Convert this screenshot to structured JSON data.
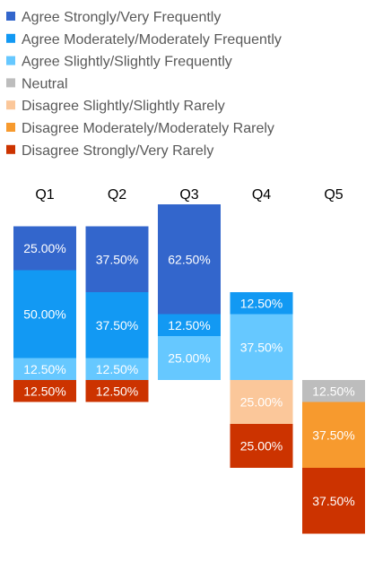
{
  "chart_data": {
    "type": "bar",
    "stacked": true,
    "diverging": true,
    "categories": [
      "Q1",
      "Q2",
      "Q3",
      "Q4",
      "Q5"
    ],
    "series": [
      {
        "name": "Agree Strongly/Very Frequently",
        "color": "#3366cc",
        "values": [
          25.0,
          37.5,
          62.5,
          0,
          0
        ],
        "labels": [
          "25.00%",
          "37.50%",
          "62.50%",
          "",
          ""
        ]
      },
      {
        "name": "Agree Moderately/Moderately Frequently",
        "color": "#1299f3",
        "values": [
          50.0,
          37.5,
          12.5,
          12.5,
          0
        ],
        "labels": [
          "50.00%",
          "37.50%",
          "12.50%",
          "12.50%",
          ""
        ]
      },
      {
        "name": "Agree Slightly/Slightly Frequently",
        "color": "#66c8ff",
        "values": [
          12.5,
          12.5,
          25.0,
          37.5,
          0
        ],
        "labels": [
          "12.50%",
          "12.50%",
          "25.00%",
          "37.50%",
          ""
        ]
      },
      {
        "name": "Neutral",
        "color": "#bdbdbd",
        "values": [
          0,
          0,
          0,
          0,
          12.5
        ],
        "labels": [
          "",
          "",
          "",
          "",
          "12.50%"
        ]
      },
      {
        "name": "Disagree Slightly/Slightly Rarely",
        "color": "#fbc79a",
        "values": [
          0,
          0,
          0,
          25.0,
          0
        ],
        "labels": [
          "",
          "",
          "",
          "25.00%",
          ""
        ]
      },
      {
        "name": "Disagree Moderately/Moderately Rarely",
        "color": "#f79a2e",
        "values": [
          0,
          0,
          0,
          0,
          37.5
        ],
        "labels": [
          "",
          "",
          "",
          "",
          "37.50%"
        ]
      },
      {
        "name": "Disagree Strongly/Very Rarely",
        "color": "#cc3300",
        "values": [
          12.5,
          12.5,
          0,
          25.0,
          37.5
        ],
        "labels": [
          "12.50%",
          "12.50%",
          "",
          "25.00%",
          "37.50%"
        ]
      }
    ],
    "legend_position": "top-left",
    "grid": false
  }
}
